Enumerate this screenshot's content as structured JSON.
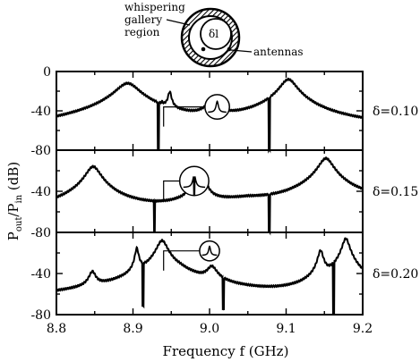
{
  "figure": {
    "inset": {
      "label_whispering": [
        "whispering",
        "gallery",
        "region"
      ],
      "label_antennas": "antennas",
      "label_center": "δl"
    },
    "xlabel": "Frequency f (GHz)",
    "ylabel": "P_out/P_in (dB)",
    "ylabel_main": "P",
    "ylabel_sub1": "out",
    "ylabel_mid": "/P",
    "ylabel_sub2": "in",
    "ylabel_end": " (dB)",
    "ylabel_prefix": "P",
    "ylabel_suffix": "(dB)"
  },
  "chart_data": [
    {
      "type": "line",
      "panel_label": "δ=0.10",
      "xlim": [
        8.8,
        9.2
      ],
      "ylim": [
        -80,
        0
      ],
      "x_ticks": [
        "8.8",
        "8.9",
        "9.0",
        "9.1",
        "9.2"
      ],
      "y_ticks": [
        "0",
        "-40",
        "-80"
      ],
      "baseline": [
        [
          8.8,
          -75
        ],
        [
          8.87,
          -68
        ],
        [
          8.95,
          -64
        ],
        [
          9.05,
          -62
        ],
        [
          9.15,
          -65
        ],
        [
          9.2,
          -63
        ]
      ],
      "peaks": [
        {
          "x": 8.893,
          "y": -12,
          "w": 0.013
        },
        {
          "x": 8.938,
          "y": -45,
          "w": 0.001,
          "dip": true
        },
        {
          "x": 8.948,
          "y": -22,
          "w": 0.002
        },
        {
          "x": 9.003,
          "y": -30,
          "w": 0.006
        },
        {
          "x": 9.103,
          "y": -8,
          "w": 0.009
        }
      ],
      "dips": [
        {
          "x": 8.933,
          "y": -80
        },
        {
          "x": 9.078,
          "y": -80
        }
      ],
      "zoom": {
        "cx": 9.01,
        "cy": -36,
        "r_x": 0.016
      }
    },
    {
      "type": "line",
      "panel_label": "δ=0.15",
      "xlim": [
        8.8,
        9.2
      ],
      "ylim": [
        -80,
        0
      ],
      "x_ticks": [
        "8.8",
        "8.9",
        "9.0",
        "9.1",
        "9.2"
      ],
      "y_ticks": [
        "0",
        "-40",
        "-80"
      ],
      "baseline": [
        [
          8.8,
          -64
        ],
        [
          8.88,
          -62
        ],
        [
          8.93,
          -60
        ],
        [
          8.96,
          -55
        ],
        [
          9.05,
          -50
        ],
        [
          9.1,
          -55
        ],
        [
          9.2,
          -52
        ]
      ],
      "peaks": [
        {
          "x": 8.848,
          "y": -16,
          "w": 0.008
        },
        {
          "x": 8.979,
          "y": -30,
          "w": 0.004
        },
        {
          "x": 8.992,
          "y": -28,
          "w": 0.004
        },
        {
          "x": 9.152,
          "y": -8,
          "w": 0.008
        }
      ],
      "dips": [
        {
          "x": 8.928,
          "y": -80
        },
        {
          "x": 9.078,
          "y": -80
        }
      ],
      "zoom": {
        "cx": 8.98,
        "cy": -30,
        "r_x": 0.019
      }
    },
    {
      "type": "line",
      "panel_label": "δ=0.20",
      "xlim": [
        8.8,
        9.2
      ],
      "ylim": [
        -80,
        0
      ],
      "x_ticks": [
        "8.8",
        "8.9",
        "9.0",
        "9.1",
        "9.2"
      ],
      "y_ticks": [
        "0",
        "-40",
        "-80"
      ],
      "baseline": [
        [
          8.8,
          -65
        ],
        [
          8.85,
          -62
        ],
        [
          8.9,
          -58
        ],
        [
          8.96,
          -42
        ],
        [
          9.0,
          -55
        ],
        [
          9.05,
          -62
        ],
        [
          9.1,
          -70
        ],
        [
          9.14,
          -78
        ],
        [
          9.2,
          -65
        ]
      ],
      "peaks": [
        {
          "x": 8.847,
          "y": -40,
          "w": 0.004
        },
        {
          "x": 8.905,
          "y": -16,
          "w": 0.002
        },
        {
          "x": 8.938,
          "y": -8,
          "w": 0.006
        },
        {
          "x": 9.003,
          "y": -35,
          "w": 0.006
        },
        {
          "x": 9.145,
          "y": -18,
          "w": 0.003
        },
        {
          "x": 9.178,
          "y": -6,
          "w": 0.004
        }
      ],
      "dips": [
        {
          "x": 8.913,
          "y": -72
        },
        {
          "x": 9.018,
          "y": -75
        },
        {
          "x": 9.162,
          "y": -80
        }
      ],
      "zoom": {
        "cx": 9.0,
        "cy": -18,
        "r_x": 0.013
      }
    }
  ]
}
